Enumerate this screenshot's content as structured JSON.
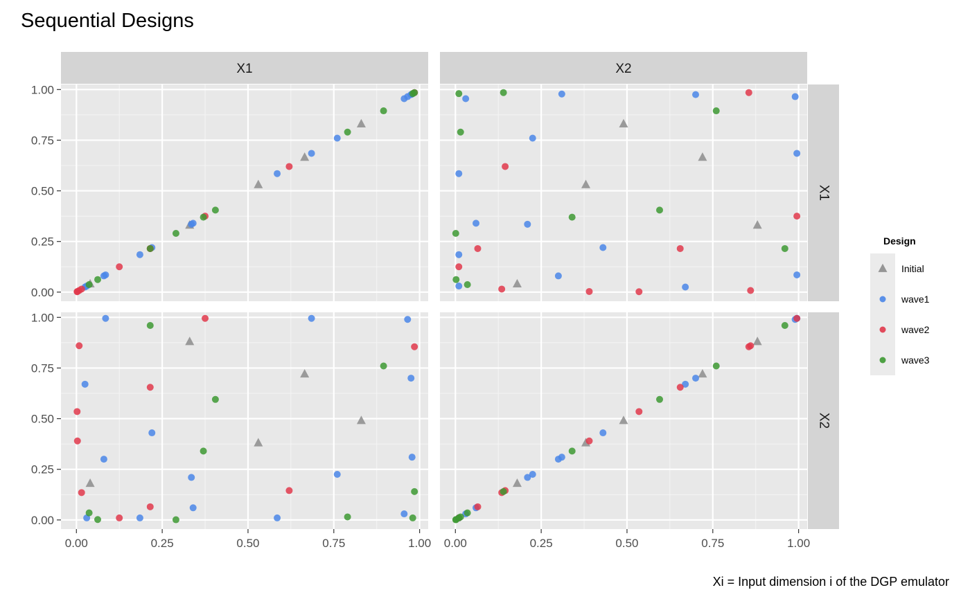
{
  "chart_data": {
    "type": "scatter",
    "title": "Sequential Designs",
    "caption": "Xi = Input dimension i of the DGP emulator",
    "facet_columns": [
      "X1",
      "X2"
    ],
    "facet_rows": [
      "X1",
      "X2"
    ],
    "xlim": [
      -0.045,
      1.025
    ],
    "ylim": [
      -0.045,
      1.025
    ],
    "x_ticks": [
      "0.00",
      "0.25",
      "0.50",
      "0.75",
      "1.00"
    ],
    "x_tick_values": [
      0,
      0.25,
      0.5,
      0.75,
      1
    ],
    "y_ticks": [
      "0.00",
      "0.25",
      "0.50",
      "0.75",
      "1.00"
    ],
    "y_tick_values": [
      0,
      0.25,
      0.5,
      0.75,
      1
    ],
    "grid": true,
    "legend": {
      "title": "Design",
      "placement": "right",
      "entries": [
        {
          "label": "Initial",
          "shape": "triangle",
          "color": "#8c8c8c"
        },
        {
          "label": "wave1",
          "shape": "circle",
          "color": "#4a86e8"
        },
        {
          "label": "wave2",
          "shape": "circle",
          "color": "#e0384b"
        },
        {
          "label": "wave3",
          "shape": "circle",
          "color": "#3d9932"
        }
      ]
    },
    "series": [
      {
        "name": "Initial",
        "points": [
          {
            "x1": 0.04,
            "x2": 0.18
          },
          {
            "x1": 0.33,
            "x2": 0.88
          },
          {
            "x1": 0.53,
            "x2": 0.38
          },
          {
            "x1": 0.665,
            "x2": 0.72
          },
          {
            "x1": 0.83,
            "x2": 0.49
          }
        ]
      },
      {
        "name": "wave1",
        "points": [
          {
            "x1": 0.025,
            "x2": 0.67
          },
          {
            "x1": 0.03,
            "x2": 0.01
          },
          {
            "x1": 0.08,
            "x2": 0.3
          },
          {
            "x1": 0.085,
            "x2": 0.995
          },
          {
            "x1": 0.185,
            "x2": 0.01
          },
          {
            "x1": 0.22,
            "x2": 0.43
          },
          {
            "x1": 0.335,
            "x2": 0.21
          },
          {
            "x1": 0.34,
            "x2": 0.06
          },
          {
            "x1": 0.585,
            "x2": 0.01
          },
          {
            "x1": 0.685,
            "x2": 0.995
          },
          {
            "x1": 0.76,
            "x2": 0.225
          },
          {
            "x1": 0.955,
            "x2": 0.03
          },
          {
            "x1": 0.965,
            "x2": 0.99
          },
          {
            "x1": 0.975,
            "x2": 0.7
          },
          {
            "x1": 0.978,
            "x2": 0.31
          }
        ]
      },
      {
        "name": "wave2",
        "points": [
          {
            "x1": 0.002,
            "x2": 0.535
          },
          {
            "x1": 0.003,
            "x2": 0.39
          },
          {
            "x1": 0.008,
            "x2": 0.86
          },
          {
            "x1": 0.015,
            "x2": 0.135
          },
          {
            "x1": 0.125,
            "x2": 0.01
          },
          {
            "x1": 0.215,
            "x2": 0.655
          },
          {
            "x1": 0.215,
            "x2": 0.065
          },
          {
            "x1": 0.375,
            "x2": 0.995
          },
          {
            "x1": 0.62,
            "x2": 0.145
          },
          {
            "x1": 0.985,
            "x2": 0.855
          }
        ]
      },
      {
        "name": "wave3",
        "points": [
          {
            "x1": 0.037,
            "x2": 0.035
          },
          {
            "x1": 0.062,
            "x2": 0.002
          },
          {
            "x1": 0.215,
            "x2": 0.96
          },
          {
            "x1": 0.29,
            "x2": 0.001
          },
          {
            "x1": 0.37,
            "x2": 0.34
          },
          {
            "x1": 0.405,
            "x2": 0.595
          },
          {
            "x1": 0.79,
            "x2": 0.015
          },
          {
            "x1": 0.895,
            "x2": 0.76
          },
          {
            "x1": 0.98,
            "x2": 0.01
          },
          {
            "x1": 0.985,
            "x2": 0.14
          }
        ]
      }
    ]
  }
}
